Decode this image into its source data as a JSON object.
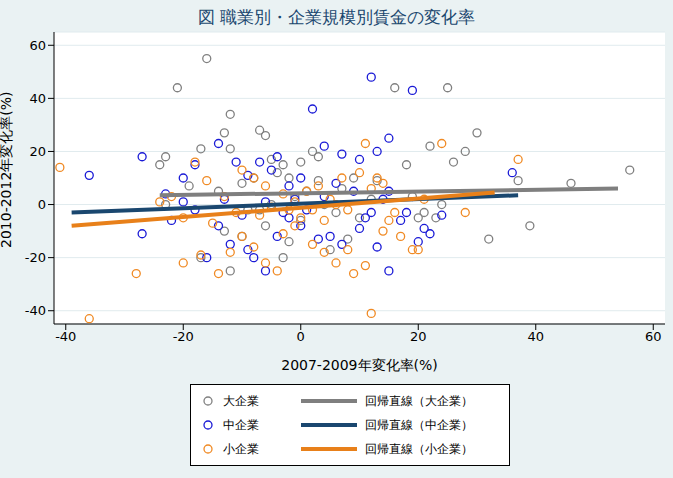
{
  "chart_data": {
    "type": "scatter",
    "title": "図 職業別・企業規模別賃金の変化率",
    "x_label": "2007-2009年変化率(%)",
    "y_label": "2010-2012年変化率(%)",
    "xlim": [
      -42,
      62
    ],
    "xticks": [
      -40,
      -20,
      0,
      20,
      40,
      60
    ],
    "ylim": [
      -45,
      65
    ],
    "yticks": [
      -40,
      -20,
      0,
      20,
      40,
      60
    ],
    "grid": true,
    "legend": "bottom",
    "series": [
      {
        "name": "大企業",
        "color": "#808080",
        "marker": "open_circle",
        "x": [
          -16,
          -21,
          -12,
          -13,
          -7,
          -6,
          -23,
          -17,
          -12,
          -5,
          -3,
          0,
          2,
          3,
          -2,
          -4,
          -8,
          -10,
          -14,
          -19,
          -24,
          -23,
          -9,
          -5,
          -1,
          1,
          4,
          6,
          7,
          -13,
          -17,
          -12,
          -10,
          -6,
          5,
          8,
          10,
          12,
          16,
          25,
          20,
          23,
          24,
          28,
          26,
          30,
          22,
          18,
          19,
          21,
          32,
          37,
          39,
          46,
          56,
          -3,
          -7,
          3,
          0,
          -2,
          9,
          13
        ],
        "values": [
          55,
          44,
          34,
          27,
          28,
          26,
          18,
          21,
          21,
          17,
          15,
          16,
          20,
          18,
          10,
          12,
          10,
          8,
          5,
          7,
          15,
          0,
          -2,
          0,
          3,
          5,
          0,
          -3,
          6,
          -10,
          -20,
          -25,
          -12,
          -8,
          -17,
          -13,
          -5,
          2,
          44,
          44,
          -5,
          -5,
          0,
          20,
          16,
          27,
          22,
          15,
          3,
          -3,
          -13,
          9,
          -8,
          8,
          13,
          -20,
          -2,
          9,
          -6,
          -14,
          10,
          9
        ]
      },
      {
        "name": "中企業",
        "color": "#1a1ad6",
        "marker": "open_circle",
        "x": [
          -36,
          -27,
          -27,
          -22,
          -23,
          -20,
          -18,
          -14,
          -11,
          -9,
          -7,
          -5,
          -4,
          -2,
          0,
          2,
          4,
          7,
          10,
          12,
          13,
          15,
          19,
          -16,
          -14,
          -12,
          -9,
          -8,
          -6,
          -4,
          -2,
          0,
          3,
          5,
          7,
          10,
          13,
          15,
          17,
          20,
          22,
          24,
          21,
          36,
          15,
          12,
          9,
          6,
          4,
          1,
          -1,
          -3,
          -6,
          -10,
          -13,
          -18,
          -20,
          11,
          14,
          18
        ],
        "values": [
          11,
          18,
          -11,
          -6,
          4,
          10,
          15,
          23,
          16,
          11,
          16,
          13,
          18,
          7,
          10,
          36,
          22,
          19,
          17,
          48,
          20,
          25,
          43,
          -20,
          -8,
          -15,
          -17,
          -20,
          -25,
          -12,
          -5,
          -8,
          -13,
          -12,
          -15,
          -9,
          -16,
          -25,
          -6,
          -14,
          -11,
          -4,
          -9,
          12,
          5,
          -3,
          5,
          8,
          3,
          -2,
          2,
          -3,
          1,
          -4,
          2,
          -2,
          1,
          -5,
          2,
          -3
        ]
      },
      {
        "name": "小企業",
        "color": "#f08a24",
        "marker": "open_circle",
        "x": [
          -41,
          -36,
          -28,
          -24,
          -22,
          -20,
          -20,
          -17,
          -15,
          -14,
          -12,
          -10,
          -8,
          -6,
          -4,
          -3,
          -1,
          0,
          2,
          4,
          6,
          8,
          9,
          11,
          12,
          14,
          15,
          17,
          19,
          21,
          24,
          28,
          37,
          -18,
          -16,
          -13,
          -10,
          -8,
          -6,
          -3,
          -1,
          1,
          3,
          5,
          7,
          10,
          11,
          13,
          16,
          20,
          -11,
          -7,
          -5,
          -2,
          2,
          4,
          6,
          8,
          12,
          14
        ],
        "values": [
          14,
          -43,
          -26,
          1,
          3,
          -5,
          -22,
          -19,
          -7,
          -26,
          -18,
          -12,
          -16,
          -22,
          -25,
          -11,
          -8,
          -5,
          -15,
          -18,
          -22,
          -17,
          -26,
          -23,
          -41,
          -10,
          -6,
          -12,
          -17,
          2,
          23,
          -3,
          17,
          16,
          9,
          3,
          13,
          10,
          7,
          4,
          1,
          5,
          7,
          2,
          10,
          12,
          23,
          10,
          -3,
          -17,
          -3,
          -4,
          -1,
          -2,
          -2,
          -6,
          0,
          -2,
          6,
          8
        ]
      },
      {
        "name": "回帰直線（大企業）",
        "type": "line",
        "color": "#7f7f7f",
        "x": [
          -24,
          54
        ],
        "values": [
          3.5,
          6
        ]
      },
      {
        "name": "回帰直線（中企業）",
        "type": "line",
        "color": "#1a476f",
        "x": [
          -39,
          37
        ],
        "values": [
          -3,
          3.5
        ]
      },
      {
        "name": "回帰直線（小企業）",
        "type": "line",
        "color": "#e8801a",
        "x": [
          -39,
          33
        ],
        "values": [
          -8,
          4.5
        ]
      }
    ]
  }
}
